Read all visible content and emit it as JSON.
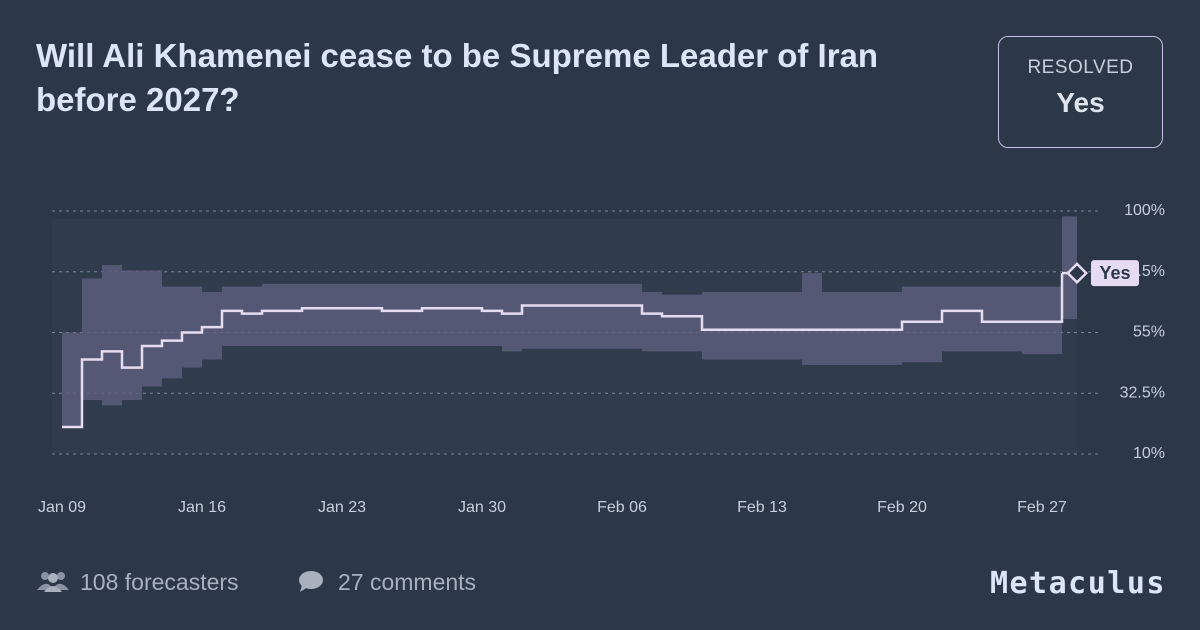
{
  "header": {
    "title": "Will Ali Khamenei cease to be Supreme Leader of Iran before 2027?",
    "status_label": "RESOLVED",
    "resolution": "Yes"
  },
  "chart_data": {
    "type": "line",
    "categories": [
      null,
      null,
      null,
      null,
      null,
      null,
      null,
      null,
      null,
      null,
      null,
      null,
      null,
      null,
      null,
      null,
      null,
      null,
      null,
      null,
      null,
      null,
      null,
      null,
      null,
      null,
      null,
      null,
      null,
      null,
      null,
      null,
      null,
      null,
      null,
      null,
      null,
      null,
      null,
      null,
      null,
      null,
      null,
      null,
      null,
      null,
      null,
      null,
      null,
      null,
      null
    ],
    "xticks": [
      {
        "value": 0,
        "label": "Jan 09"
      },
      {
        "value": 7,
        "label": "Jan 16"
      },
      {
        "value": 14,
        "label": "Jan 23"
      },
      {
        "value": 21,
        "label": "Jan 30"
      },
      {
        "value": 28,
        "label": "Feb 06"
      },
      {
        "value": 35,
        "label": "Feb 13"
      },
      {
        "value": 42,
        "label": "Feb 20"
      },
      {
        "value": 49,
        "label": "Feb 27"
      }
    ],
    "series": [
      {
        "color": "#e6dcf2",
        "values": [
          20,
          45,
          48,
          42,
          50,
          52,
          55,
          57,
          63,
          62,
          63,
          63,
          64,
          64,
          64,
          64,
          63,
          63,
          64,
          64,
          64,
          63,
          62,
          65,
          65,
          65,
          65,
          65,
          65,
          62,
          61,
          61,
          56,
          56,
          56,
          56,
          56,
          56,
          56,
          56,
          56,
          56,
          59,
          59,
          63,
          63,
          59,
          59,
          59,
          59,
          77
        ]
      }
    ],
    "interval": {
      "color": "#5c5d7c",
      "lower": [
        20,
        30,
        28,
        30,
        35,
        38,
        42,
        45,
        50,
        50,
        50,
        50,
        50,
        50,
        50,
        50,
        50,
        50,
        50,
        50,
        50,
        50,
        48,
        49,
        49,
        49,
        49,
        49,
        49,
        48,
        48,
        48,
        45,
        45,
        45,
        45,
        45,
        43,
        43,
        43,
        43,
        43,
        44,
        44,
        48,
        48,
        48,
        48,
        47,
        47,
        60
      ],
      "upper": [
        55,
        75,
        80,
        78,
        78,
        72,
        72,
        70,
        72,
        72,
        73,
        73,
        73,
        73,
        73,
        73,
        73,
        73,
        73,
        73,
        73,
        73,
        73,
        73,
        73,
        73,
        73,
        73,
        73,
        70,
        69,
        69,
        70,
        70,
        70,
        70,
        70,
        77,
        70,
        70,
        70,
        70,
        72,
        72,
        72,
        72,
        72,
        72,
        72,
        72,
        98
      ]
    },
    "ylim": [
      10,
      100
    ],
    "yticks": [
      {
        "value": 10,
        "label": "10%"
      },
      {
        "value": 32.5,
        "label": "32.5%"
      },
      {
        "value": 55,
        "label": "55%"
      },
      {
        "value": 77.5,
        "label": "77.5%"
      },
      {
        "value": 100,
        "label": "100%"
      }
    ],
    "grid": true
  },
  "footer": {
    "forecasters": "108 forecasters",
    "comments": "27 comments",
    "brand": "Metaculus"
  }
}
